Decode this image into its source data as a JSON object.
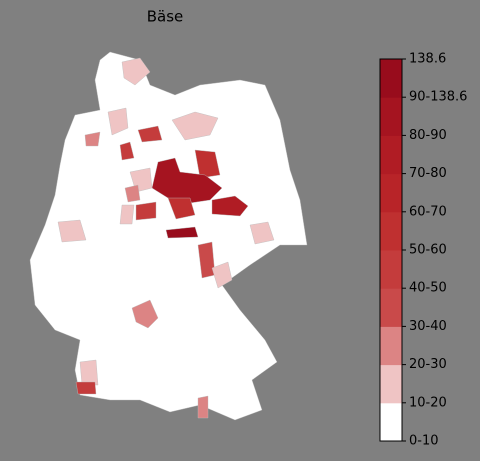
{
  "header": {
    "title": "Bäse"
  },
  "legend": {
    "ticks": [
      "138.6",
      "90-138.6",
      "80-90",
      "70-80",
      "60-70",
      "50-60",
      "40-50",
      "30-40",
      "20-30",
      "10-20",
      "0-10"
    ],
    "colors": [
      "#ffffff",
      "#efc4c4",
      "#dc8484",
      "#c94a4a",
      "#c43c3c",
      "#bf3030",
      "#b82428",
      "#b01c24",
      "#a51420",
      "#980c1c"
    ]
  }
}
